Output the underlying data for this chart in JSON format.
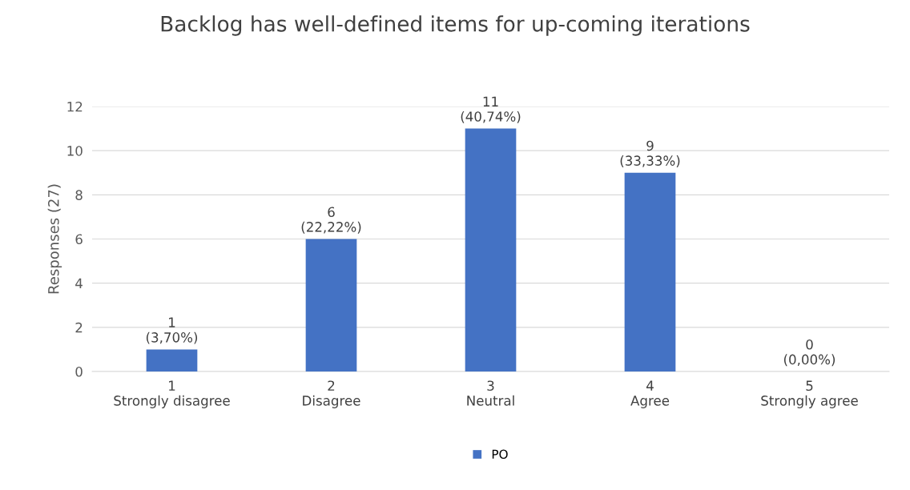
{
  "chart_data": {
    "type": "bar",
    "title": "Backlog has well-defined items for up-coming iterations",
    "ylabel": "Responses (27)",
    "categories": [
      "1\nStrongly disagree",
      "2\nDisagree",
      "3\nNeutral",
      "4\nAgree",
      "5\nStrongly agree"
    ],
    "series": [
      {
        "name": "PO",
        "color": "#4472c4",
        "values": [
          1,
          6,
          11,
          9,
          0
        ]
      }
    ],
    "value_labels": [
      "1\n(3,70%)",
      "6\n(22,22%)",
      "11\n(40,74%)",
      "9\n(33,33%)",
      "0\n(0,00%)"
    ],
    "ylim": [
      0,
      12
    ],
    "yticks": [
      0,
      2,
      4,
      6,
      8,
      10,
      12
    ],
    "grid": "y",
    "legend": "bottom"
  }
}
